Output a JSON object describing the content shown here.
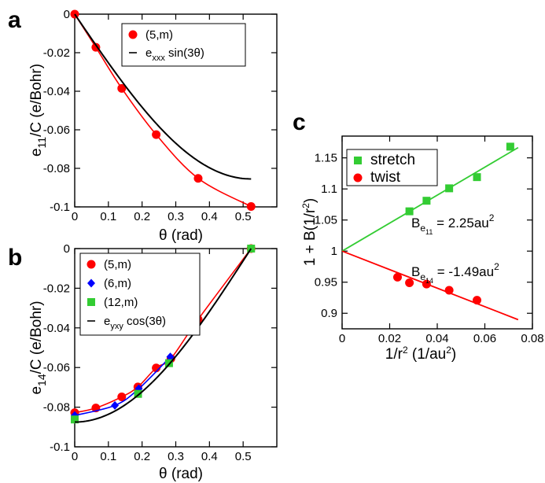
{
  "chart_data": [
    {
      "panel": "a",
      "type": "scatter",
      "xlabel": "θ (rad)",
      "ylabel": "e11/C (e/Bohr)",
      "xlim": [
        0,
        0.6
      ],
      "ylim": [
        -0.1,
        0
      ],
      "xticks": [
        "0",
        "0.1",
        "0.2",
        "0.3",
        "0.4",
        "0.5"
      ],
      "yticks": [
        "0",
        "-0.02",
        "-0.04",
        "-0.06",
        "-0.08",
        "-0.1"
      ],
      "legend_position": "top-right",
      "series": [
        {
          "name": "(5,m)",
          "marker": "circle",
          "color": "#ff0000",
          "line_color": "#ff0000",
          "x": [
            0.0,
            0.0628,
            0.1396,
            0.2419,
            0.3665,
            0.5236
          ],
          "y": [
            0.0,
            -0.0172,
            -0.0385,
            -0.0625,
            -0.0852,
            -0.0998
          ]
        },
        {
          "name": "e_xxx sin(3θ)",
          "marker": "line",
          "color": "#000000",
          "formula": "-0.0855*sin(3*theta)",
          "x_range": [
            0,
            0.5236
          ]
        }
      ]
    },
    {
      "panel": "b",
      "type": "scatter",
      "xlabel": "θ (rad)",
      "ylabel": "e14/C (e/Bohr)",
      "xlim": [
        0,
        0.6
      ],
      "ylim": [
        -0.1,
        0
      ],
      "xticks": [
        "0",
        "0.1",
        "0.2",
        "0.3",
        "0.4",
        "0.5"
      ],
      "yticks": [
        "0",
        "-0.02",
        "-0.04",
        "-0.06",
        "-0.08",
        "-0.1"
      ],
      "legend_position": "top-left",
      "series": [
        {
          "name": "(5,m)",
          "marker": "circle",
          "color": "#ff0000",
          "line_color": "#ff0000",
          "x": [
            0.0,
            0.0628,
            0.1396,
            0.1875,
            0.2419,
            0.2856,
            0.3665,
            0.5236
          ],
          "y": [
            -0.0828,
            -0.0804,
            -0.0748,
            -0.0698,
            -0.0602,
            -0.0555,
            -0.0357,
            0.0
          ]
        },
        {
          "name": "(6,m)",
          "marker": "diamond",
          "color": "#0000ff",
          "line_color": "#0000ff",
          "x": [
            0.0,
            0.1193,
            0.1901,
            0.2838
          ],
          "y": [
            -0.0842,
            -0.0791,
            -0.0707,
            -0.0546
          ]
        },
        {
          "name": "(12,m)",
          "marker": "square",
          "color": "#33cc33",
          "x": [
            0.0,
            0.188,
            0.28,
            0.5236
          ],
          "y": [
            -0.0862,
            -0.0733,
            -0.0578,
            0.0
          ]
        },
        {
          "name": "e_yxy cos(3θ)",
          "marker": "line",
          "color": "#000000",
          "formula": "-0.0875*cos(3*theta)",
          "x_range": [
            0,
            0.5236
          ]
        }
      ]
    },
    {
      "panel": "c",
      "type": "scatter",
      "xlabel": "1/r² (1/au²)",
      "ylabel": "1 + B(1/r²)",
      "xlim": [
        0,
        0.08
      ],
      "ylim": [
        0.875,
        1.185
      ],
      "xticks": [
        "0",
        "0.02",
        "0.04",
        "0.06",
        "0.08"
      ],
      "yticks": [
        "0.9",
        "0.95",
        "1",
        "1.05",
        "1.1",
        "1.15"
      ],
      "legend_position": "top-left",
      "series": [
        {
          "name": "stretch",
          "marker": "square",
          "color": "#33cc33",
          "x": [
            0.0283,
            0.0355,
            0.045,
            0.0567,
            0.0707
          ],
          "y": [
            1.064,
            1.081,
            1.101,
            1.119,
            1.168
          ],
          "fit_slope": 2.25,
          "fit_x_range": [
            0,
            0.074
          ]
        },
        {
          "name": "twist",
          "marker": "circle",
          "color": "#ff0000",
          "x": [
            0.0233,
            0.0283,
            0.0355,
            0.045,
            0.0567
          ],
          "y": [
            0.958,
            0.949,
            0.947,
            0.937,
            0.921
          ],
          "fit_slope": -1.49,
          "fit_x_range": [
            0,
            0.074
          ]
        }
      ],
      "annotations": [
        {
          "base": "B",
          "sub": "e",
          "subsub": "11",
          "rest": " = 2.25au",
          "sup": "2"
        },
        {
          "base": "B",
          "sub": "e",
          "subsub": "14",
          "rest": " = -1.49au",
          "sup": "2"
        }
      ]
    }
  ]
}
